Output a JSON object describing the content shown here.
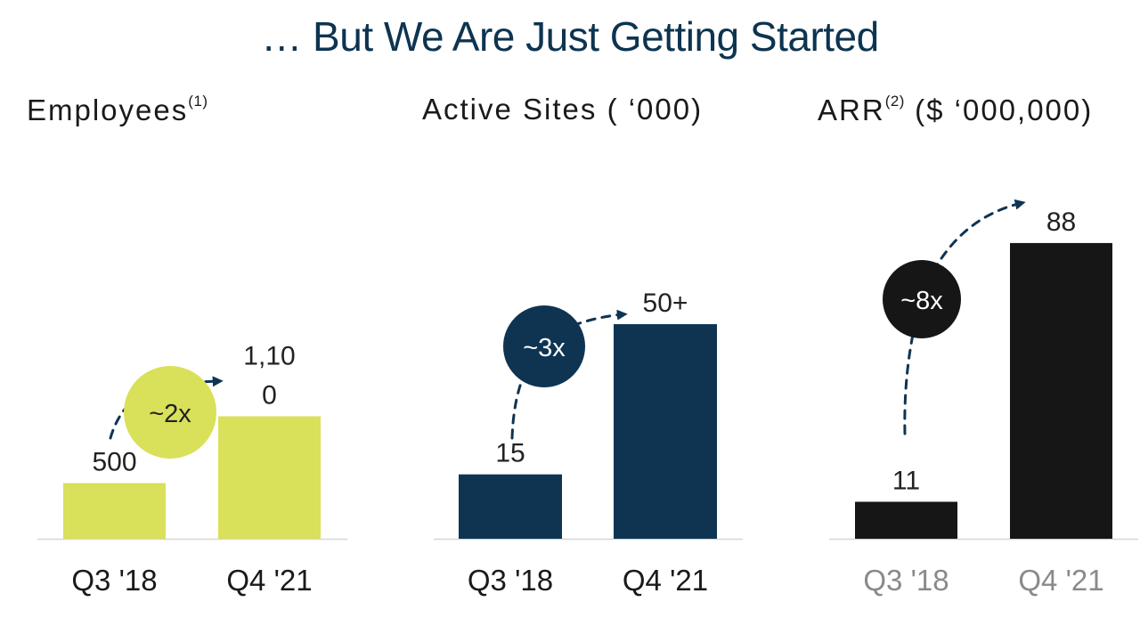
{
  "title": "… But We Are Just Getting Started",
  "chart_data": [
    {
      "type": "bar",
      "title": "Employees",
      "title_note": "(1)",
      "categories": [
        "Q3 '18",
        "Q4 '21"
      ],
      "values": [
        500,
        1100
      ],
      "value_labels": [
        "500",
        "1,10\n0"
      ],
      "ylim": [
        0,
        3200
      ],
      "multiplier": "~2x",
      "bar_color": "#d9e05a",
      "badge_color": "#d9e05a",
      "badge_text_color": "#222222",
      "tick_color": "#1a1a1a"
    },
    {
      "type": "bar",
      "title": "Active Sites ( ‘000)",
      "categories": [
        "Q3 '18",
        "Q4 '21"
      ],
      "values": [
        15,
        50
      ],
      "value_labels": [
        "15",
        "50+"
      ],
      "ylim": [
        0,
        83
      ],
      "multiplier": "~3x",
      "bar_color": "#0e3452",
      "badge_color": "#0e3452",
      "badge_text_color": "#ffffff",
      "tick_color": "#1a1a1a"
    },
    {
      "type": "bar",
      "title": "ARR",
      "title_note": "(2)",
      "title_suffix": " ($ ‘000,000)",
      "categories": [
        "Q3 '18",
        "Q4 '21"
      ],
      "values": [
        11,
        88
      ],
      "value_labels": [
        "11",
        "88"
      ],
      "ylim": [
        0,
        106
      ],
      "multiplier": "~8x",
      "bar_color": "#161616",
      "badge_color": "#161616",
      "badge_text_color": "#ffffff",
      "tick_color": "#8a8a8a"
    }
  ],
  "colors": {
    "title": "#0d3450",
    "arrow": "#0e3452"
  }
}
